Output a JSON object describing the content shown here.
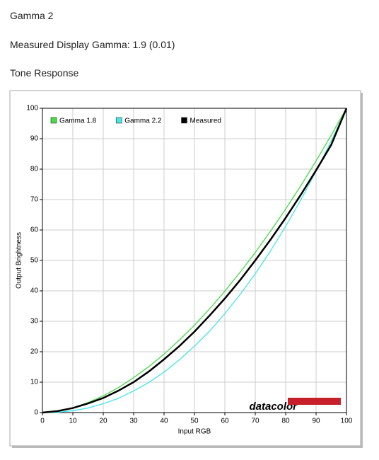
{
  "header": {
    "title": "Gamma 2",
    "subtitle": "Measured Display Gamma: 1.9 (0.01)",
    "section": "Tone Response"
  },
  "chart_data": {
    "type": "line",
    "xlabel": "Input RGB",
    "ylabel": "Output Brightness",
    "brand": "datacolor",
    "x": [
      0,
      5,
      10,
      15,
      20,
      25,
      30,
      35,
      40,
      45,
      50,
      55,
      60,
      65,
      70,
      75,
      80,
      85,
      90,
      95,
      100
    ],
    "series": [
      {
        "name": "Gamma 1.8",
        "color": "#44dd44",
        "values": [
          0,
          0.5,
          1.6,
          3.3,
          5.5,
          8.2,
          11.5,
          15.1,
          19.2,
          23.8,
          28.7,
          34.1,
          39.9,
          46.1,
          52.6,
          59.6,
          66.9,
          74.6,
          82.7,
          91.2,
          100
        ]
      },
      {
        "name": "Gamma 2.2",
        "color": "#44e6e6",
        "values": [
          0,
          0.1,
          0.6,
          1.5,
          2.9,
          4.7,
          7.1,
          9.9,
          13.3,
          17.3,
          21.8,
          26.8,
          32.5,
          38.8,
          45.6,
          53.1,
          61.2,
          69.9,
          79.3,
          89.3,
          100
        ]
      },
      {
        "name": "Measured",
        "color": "#000000",
        "values": [
          0,
          0.5,
          1.5,
          3.0,
          4.8,
          7.2,
          10,
          13.5,
          17.5,
          21.8,
          26.6,
          31.9,
          37.5,
          43.5,
          50.0,
          56.8,
          64.0,
          71.6,
          79.6,
          88.0,
          100
        ]
      }
    ],
    "xlim": [
      0,
      100
    ],
    "ylim": [
      0,
      100
    ],
    "xticks": [
      0,
      10,
      20,
      30,
      40,
      50,
      60,
      70,
      80,
      90,
      100
    ],
    "yticks": [
      0,
      10,
      20,
      30,
      40,
      50,
      60,
      70,
      80,
      90,
      100
    ],
    "grid": true,
    "legend": "top-left"
  }
}
